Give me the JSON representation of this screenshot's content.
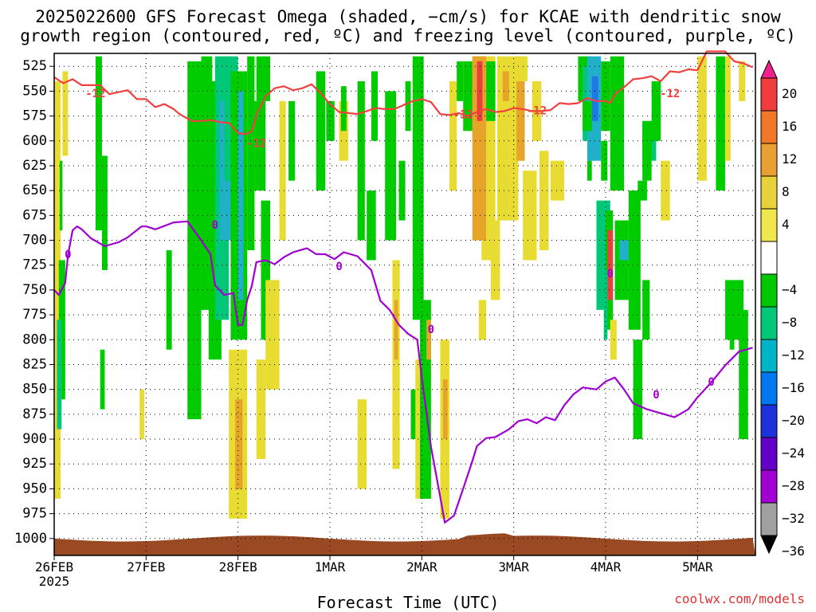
{
  "header": {
    "title_line1": "2025022600 GFS Forecast Omega (shaded, −cm/s) for KCAE with dendritic snow",
    "title_line2": "growth region (contoured, red, ºC) and freezing level (contoured, purple, ºC)"
  },
  "footer": {
    "xlabel": "Forecast Time (UTC)",
    "credit": "coolwx.com/models"
  },
  "chart_data": {
    "type": "heatmap",
    "x_ticks": [
      {
        "day": 0,
        "label": "26FEB",
        "sub": "2025"
      },
      {
        "day": 1,
        "label": "27FEB"
      },
      {
        "day": 2,
        "label": "28FEB"
      },
      {
        "day": 3,
        "label": "1MAR"
      },
      {
        "day": 4,
        "label": "2MAR"
      },
      {
        "day": 5,
        "label": "3MAR"
      },
      {
        "day": 6,
        "label": "4MAR"
      },
      {
        "day": 7,
        "label": "5MAR"
      }
    ],
    "xlim": [
      0,
      7.63
    ],
    "ylabel_ticks": [
      "525",
      "550",
      "575",
      "600",
      "625",
      "650",
      "675",
      "700",
      "725",
      "750",
      "775",
      "800",
      "825",
      "850",
      "875",
      "900",
      "925",
      "950",
      "975",
      "1000"
    ],
    "ylim_hpa": [
      512,
      1017
    ],
    "grid": "dotted",
    "colorbar": {
      "labels": [
        "20",
        "16",
        "12",
        "8",
        "4",
        "−4",
        "−8",
        "−12",
        "−16",
        "−20",
        "−24",
        "−28",
        "−32",
        "−36"
      ],
      "colors": [
        "#f0208c",
        "#f03c3c",
        "#f07828",
        "#e8a032",
        "#e8d23c",
        "#f0e650",
        "#ffffff",
        "#00c800",
        "#00c878",
        "#00b4c8",
        "#0078f0",
        "#1e32dc",
        "#6400c8",
        "#a000d2",
        "#a0a0a0",
        "#000000"
      ]
    },
    "omega_legend_colors": {
      "4_to_8": "#e8dc32",
      "8_to_12": "#e6a428",
      "12_to_16": "#e0782a",
      "16_to_20": "#e84040",
      "m4_to_m8": "#00cc00",
      "m8_to_m12": "#00c878",
      "m12_to_m16": "#20b0c8",
      "m16_to_m20": "#1e78e6"
    },
    "contour_m12": {
      "name": "-12",
      "color": "#f04040",
      "x": [
        0,
        0.1,
        0.2,
        0.3,
        0.5,
        0.6,
        0.8,
        0.9,
        1.0,
        1.1,
        1.2,
        1.3,
        1.35,
        1.4,
        1.5,
        1.6,
        1.7,
        1.8,
        1.9,
        2.0,
        2.05,
        2.1,
        2.15,
        2.2,
        2.3,
        2.4,
        2.5,
        2.6,
        2.7,
        2.8,
        2.9,
        3.0,
        3.1,
        3.2,
        3.3,
        3.4,
        3.5,
        3.6,
        3.7,
        3.8,
        3.9,
        4.0,
        4.1,
        4.2,
        4.3,
        4.4,
        4.5,
        4.6,
        4.7,
        4.8,
        4.9,
        5.0,
        5.1,
        5.2,
        5.3,
        5.4,
        5.5,
        5.6,
        5.7,
        5.8,
        5.9,
        6.0,
        6.05,
        6.1,
        6.2,
        6.3,
        6.4,
        6.5,
        6.6,
        6.7,
        6.8,
        6.9,
        7.0,
        7.1,
        7.2,
        7.3,
        7.4,
        7.5,
        7.6
      ],
      "y": [
        536,
        542,
        538,
        544,
        544,
        553,
        549,
        558,
        558,
        566,
        563,
        568,
        572,
        575,
        580,
        580,
        579,
        581,
        582,
        592,
        593,
        593,
        590,
        574,
        555,
        547,
        545,
        549,
        547,
        543,
        552,
        563,
        571,
        572,
        573,
        570,
        567,
        568,
        568,
        564,
        560,
        558,
        561,
        573,
        574,
        572,
        575,
        571,
        568,
        571,
        570,
        567,
        568,
        570,
        570,
        569,
        562,
        563,
        562,
        557,
        560,
        560,
        562,
        553,
        546,
        538,
        537,
        535,
        540,
        530,
        531,
        528,
        529,
        510,
        510,
        510,
        520,
        522,
        526
      ],
      "labels": [
        {
          "x": 0.45,
          "y": 553
        },
        {
          "x": 2.2,
          "y": 603
        },
        {
          "x": 4.45,
          "y": 574
        },
        {
          "x": 5.25,
          "y": 570
        },
        {
          "x": 6.7,
          "y": 553
        }
      ]
    },
    "contour_0": {
      "name": "0",
      "color": "#a000d2",
      "x": [
        0,
        0.05,
        0.12,
        0.15,
        0.2,
        0.25,
        0.3,
        0.4,
        0.55,
        0.7,
        0.8,
        0.95,
        1.0,
        1.1,
        1.3,
        1.45,
        1.6,
        1.7,
        1.75,
        1.85,
        1.95,
        2.0,
        2.05,
        2.1,
        2.15,
        2.2,
        2.3,
        2.4,
        2.5,
        2.6,
        2.75,
        2.85,
        2.95,
        3.05,
        3.15,
        3.3,
        3.45,
        3.55,
        3.65,
        3.75,
        3.85,
        3.95,
        4.0,
        4.1,
        4.2,
        4.25,
        4.35,
        4.45,
        4.55,
        4.6,
        4.7,
        4.8,
        4.95,
        5.05,
        5.15,
        5.25,
        5.35,
        5.45,
        5.55,
        5.65,
        5.75,
        5.9,
        6.0,
        6.05,
        6.1,
        6.2,
        6.3,
        6.45,
        6.6,
        6.75,
        6.9,
        7.0,
        7.15,
        7.3,
        7.45,
        7.6
      ],
      "y": [
        750,
        755,
        743,
        715,
        690,
        686,
        689,
        698,
        706,
        702,
        697,
        686,
        686,
        689,
        682,
        681,
        700,
        714,
        745,
        755,
        753,
        785,
        785,
        760,
        746,
        722,
        720,
        724,
        717,
        712,
        708,
        714,
        714,
        719,
        712,
        716,
        730,
        761,
        770,
        785,
        794,
        800,
        838,
        908,
        958,
        984,
        977,
        950,
        922,
        907,
        899,
        898,
        890,
        882,
        880,
        884,
        878,
        881,
        866,
        855,
        848,
        850,
        842,
        840,
        838,
        850,
        864,
        870,
        874,
        878,
        870,
        858,
        843,
        826,
        812,
        808
      ],
      "labels": [
        {
          "x": 0.15,
          "y": 715
        },
        {
          "x": 1.75,
          "y": 685
        },
        {
          "x": 3.1,
          "y": 727
        },
        {
          "x": 4.1,
          "y": 790
        },
        {
          "x": 6.05,
          "y": 734
        },
        {
          "x": 7.15,
          "y": 843
        },
        {
          "x": 6.55,
          "y": 856
        }
      ]
    }
  }
}
